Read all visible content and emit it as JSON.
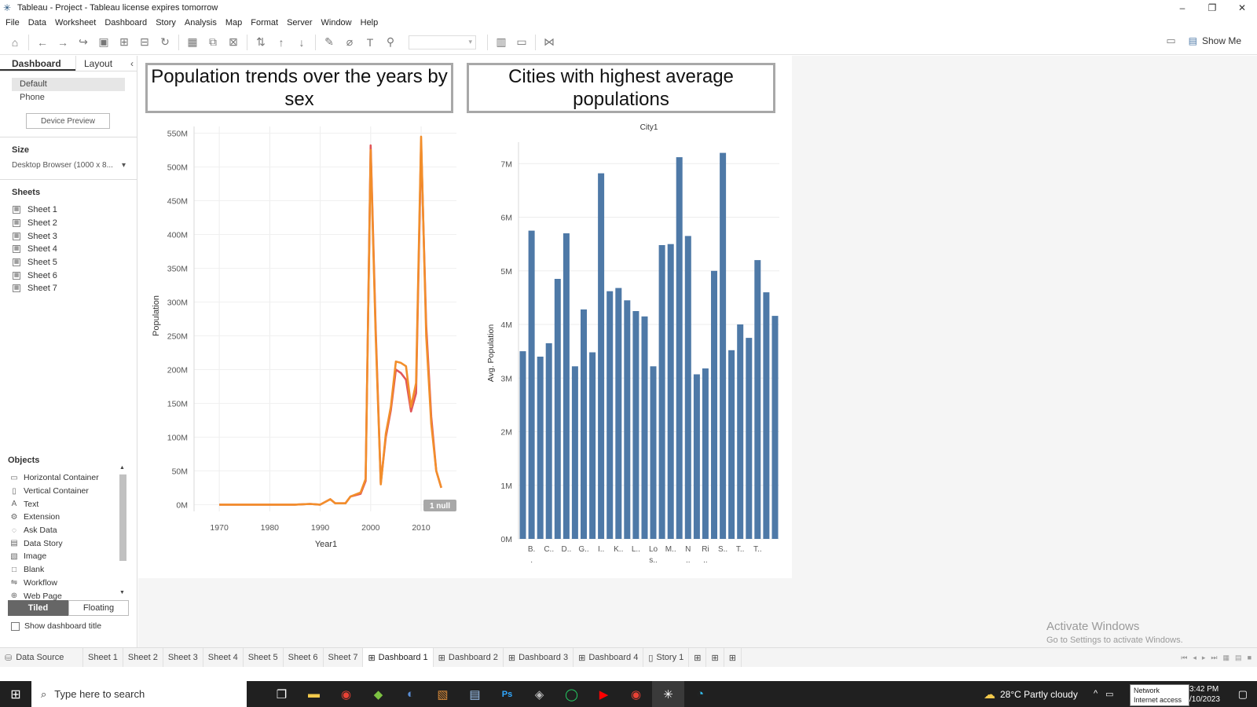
{
  "window": {
    "title": "Tableau - Project - Tableau license expires tomorrow",
    "minimize": "–",
    "restore": "❐",
    "close": "✕"
  },
  "menu": [
    "File",
    "Data",
    "Worksheet",
    "Dashboard",
    "Story",
    "Analysis",
    "Map",
    "Format",
    "Server",
    "Window",
    "Help"
  ],
  "toolbar": {
    "show_me": "Show Me"
  },
  "left_pane": {
    "tabs": [
      "Dashboard",
      "Layout"
    ],
    "devices": [
      "Default",
      "Phone"
    ],
    "device_preview": "Device Preview",
    "size_title": "Size",
    "size_value": "Desktop Browser (1000 x 8...",
    "sheets_title": "Sheets",
    "sheets": [
      "Sheet 1",
      "Sheet 2",
      "Sheet 3",
      "Sheet 4",
      "Sheet 5",
      "Sheet 6",
      "Sheet 7"
    ],
    "objects_title": "Objects",
    "objects": [
      {
        "label": "Horizontal Container",
        "icon": "▭"
      },
      {
        "label": "Vertical Container",
        "icon": "▯"
      },
      {
        "label": "Text",
        "icon": "A"
      },
      {
        "label": "Extension",
        "icon": "⚙"
      },
      {
        "label": "Ask Data",
        "icon": "◌"
      },
      {
        "label": "Data Story",
        "icon": "▤"
      },
      {
        "label": "Image",
        "icon": "▧"
      },
      {
        "label": "Blank",
        "icon": "□"
      },
      {
        "label": "Workflow",
        "icon": "⇋"
      },
      {
        "label": "Web Page",
        "icon": "⊕"
      }
    ],
    "tiled": "Tiled",
    "floating": "Floating",
    "show_title": "Show dashboard title"
  },
  "dashboard": {
    "title_left": "Population trends over the years by sex",
    "title_right": "Cities with highest average populations"
  },
  "chart_data": [
    {
      "type": "line",
      "xlabel": "Year1",
      "ylabel": "Population",
      "xlim": [
        1965,
        2017
      ],
      "ylim": [
        -10,
        560
      ],
      "yunit": "M",
      "x_ticks": [
        1970,
        1980,
        1990,
        2000,
        2010
      ],
      "y_ticks": [
        0,
        50,
        100,
        150,
        200,
        250,
        300,
        350,
        400,
        450,
        500,
        550
      ],
      "null_badge": "1 null",
      "series": [
        {
          "color": "#e15759",
          "points": [
            [
              1970,
              0
            ],
            [
              1975,
              0
            ],
            [
              1980,
              0
            ],
            [
              1985,
              0
            ],
            [
              1988,
              1
            ],
            [
              1990,
              0
            ],
            [
              1992,
              8
            ],
            [
              1993,
              2
            ],
            [
              1995,
              2
            ],
            [
              1996,
              12
            ],
            [
              1998,
              16
            ],
            [
              1999,
              35
            ],
            [
              2000,
              532
            ],
            [
              2001,
              260
            ],
            [
              2002,
              32
            ],
            [
              2003,
              100
            ],
            [
              2004,
              140
            ],
            [
              2005,
              200
            ],
            [
              2006,
              195
            ],
            [
              2007,
              185
            ],
            [
              2008,
              138
            ],
            [
              2009,
              165
            ],
            [
              2010,
              535
            ],
            [
              2011,
              265
            ],
            [
              2012,
              130
            ],
            [
              2013,
              50
            ],
            [
              2014,
              25
            ]
          ]
        },
        {
          "color": "#f28e2b",
          "points": [
            [
              1970,
              0
            ],
            [
              1975,
              0
            ],
            [
              1980,
              0
            ],
            [
              1985,
              0
            ],
            [
              1988,
              1
            ],
            [
              1990,
              0
            ],
            [
              1992,
              8
            ],
            [
              1993,
              2
            ],
            [
              1995,
              2
            ],
            [
              1996,
              12
            ],
            [
              1998,
              18
            ],
            [
              1999,
              38
            ],
            [
              2000,
              525
            ],
            [
              2001,
              250
            ],
            [
              2002,
              30
            ],
            [
              2003,
              105
            ],
            [
              2004,
              145
            ],
            [
              2005,
              212
            ],
            [
              2006,
              210
            ],
            [
              2007,
              205
            ],
            [
              2008,
              145
            ],
            [
              2009,
              180
            ],
            [
              2010,
              545
            ],
            [
              2011,
              250
            ],
            [
              2012,
              120
            ],
            [
              2013,
              50
            ],
            [
              2014,
              25
            ]
          ]
        }
      ]
    },
    {
      "type": "bar",
      "title": "City1",
      "ylabel": "Avg. Population",
      "ylim": [
        0,
        7.4
      ],
      "yunit": "M",
      "y_ticks": [
        0,
        1,
        2,
        3,
        4,
        5,
        6,
        7
      ],
      "color": "#4e79a7",
      "values": [
        3.5,
        5.75,
        3.4,
        3.65,
        4.85,
        5.7,
        3.22,
        4.28,
        3.48,
        6.82,
        4.62,
        4.68,
        4.45,
        4.25,
        4.15,
        3.22,
        5.48,
        5.5,
        7.12,
        5.65,
        3.07,
        3.18,
        5.0,
        7.2,
        3.52,
        4.0,
        3.75,
        5.2,
        4.6,
        4.16
      ],
      "tick_labels": [
        {
          "i": 1,
          "l1": "B.",
          "l2": "."
        },
        {
          "i": 3,
          "l1": "C..",
          "l2": ""
        },
        {
          "i": 5,
          "l1": "D..",
          "l2": ""
        },
        {
          "i": 7,
          "l1": "G..",
          "l2": ""
        },
        {
          "i": 9,
          "l1": "I..",
          "l2": ""
        },
        {
          "i": 11,
          "l1": "K..",
          "l2": ""
        },
        {
          "i": 13,
          "l1": "L..",
          "l2": ""
        },
        {
          "i": 15,
          "l1": "Lo",
          "l2": "s.."
        },
        {
          "i": 17,
          "l1": "M..",
          "l2": ""
        },
        {
          "i": 19,
          "l1": "N",
          "l2": ".."
        },
        {
          "i": 21,
          "l1": "Ri",
          "l2": ".."
        },
        {
          "i": 23,
          "l1": "S..",
          "l2": ""
        },
        {
          "i": 25,
          "l1": "T..",
          "l2": ""
        },
        {
          "i": 27,
          "l1": "T..",
          "l2": ""
        }
      ]
    }
  ],
  "activate": {
    "line1": "Activate Windows",
    "line2": "Go to Settings to activate Windows."
  },
  "sheet_tabs": [
    "Data Source",
    "Sheet 1",
    "Sheet 2",
    "Sheet 3",
    "Sheet 4",
    "Sheet 5",
    "Sheet 6",
    "Sheet 7",
    "Dashboard 1",
    "Dashboard 2",
    "Dashboard 3",
    "Dashboard 4",
    "Story 1"
  ],
  "active_tab": "Dashboard 1",
  "taskbar": {
    "search": "Type here to search",
    "weather": "28°C  Partly cloudy",
    "time": "3:42 PM",
    "date": "/10/2023",
    "tooltip1": "Network",
    "tooltip2": "Internet access"
  }
}
